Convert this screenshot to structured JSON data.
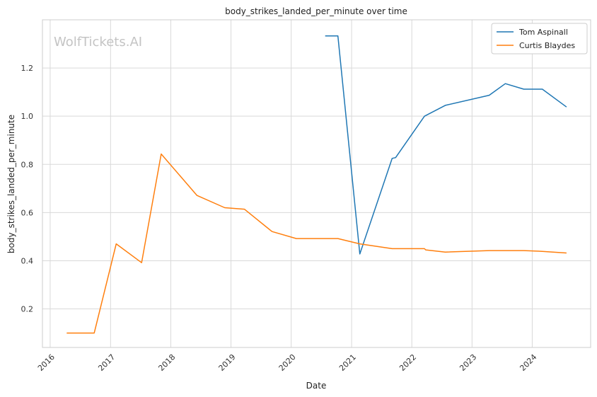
{
  "chart_data": {
    "type": "line",
    "title": "body_strikes_landed_per_minute over time",
    "xlabel": "Date",
    "ylabel": "body_strikes_landed_per_minute",
    "watermark": "WolfTickets.AI",
    "xlim": [
      "2015-11-15",
      "2024-12-20"
    ],
    "ylim": [
      0.04,
      1.4
    ],
    "x_ticks": [
      "2016",
      "2017",
      "2018",
      "2019",
      "2020",
      "2021",
      "2022",
      "2023",
      "2024"
    ],
    "y_ticks": [
      0.2,
      0.4,
      0.6,
      0.8,
      1.0,
      1.2
    ],
    "grid": true,
    "legend_position": "top-right",
    "series": [
      {
        "name": "Tom Aspinall",
        "color": "#1f77b4",
        "points": [
          [
            "2020-07-25",
            1.333
          ],
          [
            "2020-10-10",
            1.333
          ],
          [
            "2021-02-20",
            0.428
          ],
          [
            "2021-09-04",
            0.825
          ],
          [
            "2021-09-25",
            0.828
          ],
          [
            "2022-03-19",
            1.0
          ],
          [
            "2022-07-23",
            1.045
          ],
          [
            "2023-04-15",
            1.087
          ],
          [
            "2023-07-22",
            1.135
          ],
          [
            "2023-11-11",
            1.112
          ],
          [
            "2024-03-02",
            1.112
          ],
          [
            "2024-07-27",
            1.038
          ]
        ]
      },
      {
        "name": "Curtis Blaydes",
        "color": "#ff7f0e",
        "points": [
          [
            "2016-04-10",
            0.1
          ],
          [
            "2016-09-24",
            0.1
          ],
          [
            "2017-02-04",
            0.47
          ],
          [
            "2017-07-08",
            0.392
          ],
          [
            "2017-11-04",
            0.843
          ],
          [
            "2018-06-09",
            0.671
          ],
          [
            "2018-11-24",
            0.62
          ],
          [
            "2019-03-23",
            0.614
          ],
          [
            "2019-09-07",
            0.521
          ],
          [
            "2020-02-01",
            0.492
          ],
          [
            "2020-10-10",
            0.492
          ],
          [
            "2021-02-20",
            0.47
          ],
          [
            "2021-09-04",
            0.45
          ],
          [
            "2022-03-19",
            0.45
          ],
          [
            "2022-03-26",
            0.445
          ],
          [
            "2022-07-23",
            0.436
          ],
          [
            "2023-04-15",
            0.442
          ],
          [
            "2023-11-11",
            0.442
          ],
          [
            "2024-03-02",
            0.439
          ],
          [
            "2024-07-27",
            0.432
          ]
        ]
      }
    ]
  }
}
